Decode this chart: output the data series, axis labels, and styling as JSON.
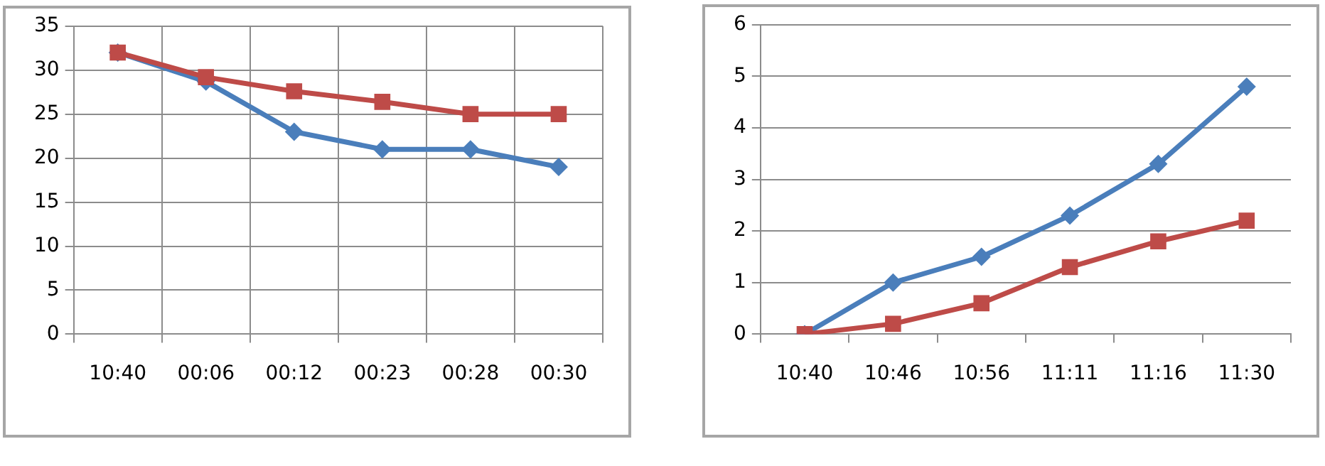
{
  "chart_data": [
    {
      "type": "line",
      "categories": [
        "10:40",
        "00:06",
        "00:12",
        "00:23",
        "00:28",
        "00:30"
      ],
      "series": [
        {
          "color": "#4a7ebb",
          "marker": "diamond",
          "values": [
            32,
            28.7,
            23,
            21,
            21,
            19
          ]
        },
        {
          "color": "#be4b48",
          "marker": "square",
          "values": [
            32,
            29.2,
            27.6,
            26.4,
            25,
            25
          ]
        }
      ],
      "ylim": [
        0,
        35
      ],
      "yticks": [
        0,
        5,
        10,
        15,
        20,
        25,
        30,
        35
      ],
      "grid": true,
      "legend": false
    },
    {
      "type": "line",
      "categories": [
        "10:40",
        "10:46",
        "10:56",
        "11:11",
        "11:16",
        "11:30"
      ],
      "series": [
        {
          "color": "#4a7ebb",
          "marker": "diamond",
          "values": [
            0,
            1,
            1.5,
            2.3,
            3.3,
            4.8
          ]
        },
        {
          "color": "#be4b48",
          "marker": "square",
          "values": [
            0,
            0.2,
            0.6,
            1.3,
            1.8,
            2.2
          ]
        }
      ],
      "ylim": [
        0,
        6
      ],
      "yticks": [
        0,
        1,
        2,
        3,
        4,
        5,
        6
      ],
      "grid": "y",
      "legend": false
    }
  ]
}
